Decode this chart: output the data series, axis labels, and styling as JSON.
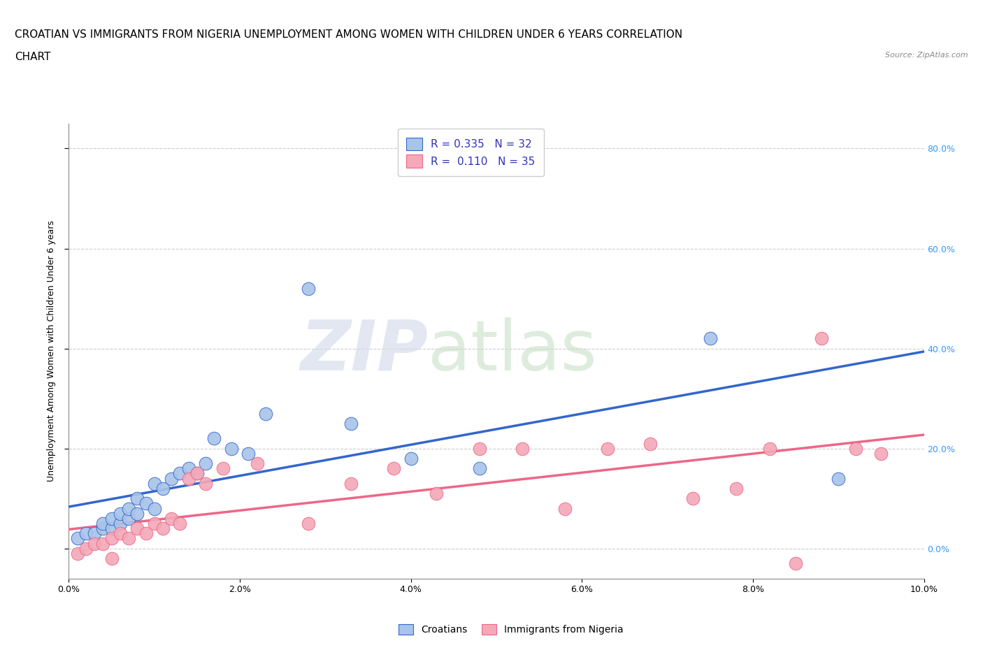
{
  "title_line1": "CROATIAN VS IMMIGRANTS FROM NIGERIA UNEMPLOYMENT AMONG WOMEN WITH CHILDREN UNDER 6 YEARS CORRELATION",
  "title_line2": "CHART",
  "source_text": "Source: ZipAtlas.com",
  "ylabel": "Unemployment Among Women with Children Under 6 years",
  "croatian_color": "#a8c4e8",
  "nigerian_color": "#f4a8b8",
  "trendline_croatian_color": "#3366cc",
  "trendline_nigerian_color": "#ee6688",
  "background_color": "#ffffff",
  "xmin": 0.0,
  "xmax": 0.1,
  "ymin": -0.06,
  "ymax": 0.85,
  "xtick_labels": [
    "0.0%",
    "2.0%",
    "4.0%",
    "6.0%",
    "8.0%",
    "10.0%"
  ],
  "xtick_vals": [
    0.0,
    0.02,
    0.04,
    0.06,
    0.08,
    0.1
  ],
  "ytick_labels": [
    "0.0%",
    "20.0%",
    "40.0%",
    "60.0%",
    "80.0%"
  ],
  "ytick_vals": [
    0.0,
    0.2,
    0.4,
    0.6,
    0.8
  ],
  "croatian_scatter_x": [
    0.001,
    0.002,
    0.003,
    0.004,
    0.004,
    0.005,
    0.005,
    0.006,
    0.006,
    0.007,
    0.007,
    0.008,
    0.008,
    0.009,
    0.01,
    0.01,
    0.011,
    0.012,
    0.013,
    0.014,
    0.015,
    0.016,
    0.017,
    0.019,
    0.021,
    0.023,
    0.028,
    0.033,
    0.04,
    0.048,
    0.075,
    0.09
  ],
  "croatian_scatter_y": [
    0.02,
    0.03,
    0.03,
    0.04,
    0.05,
    0.04,
    0.06,
    0.05,
    0.07,
    0.06,
    0.08,
    0.07,
    0.1,
    0.09,
    0.08,
    0.13,
    0.12,
    0.14,
    0.15,
    0.16,
    0.15,
    0.17,
    0.22,
    0.2,
    0.19,
    0.27,
    0.52,
    0.25,
    0.18,
    0.16,
    0.42,
    0.14
  ],
  "nigerian_scatter_x": [
    0.001,
    0.002,
    0.003,
    0.004,
    0.005,
    0.005,
    0.006,
    0.007,
    0.008,
    0.009,
    0.01,
    0.011,
    0.012,
    0.013,
    0.014,
    0.015,
    0.016,
    0.018,
    0.022,
    0.028,
    0.033,
    0.038,
    0.043,
    0.048,
    0.053,
    0.058,
    0.063,
    0.068,
    0.073,
    0.078,
    0.082,
    0.085,
    0.088,
    0.092,
    0.095
  ],
  "nigerian_scatter_y": [
    -0.01,
    0.0,
    0.01,
    0.01,
    0.02,
    -0.02,
    0.03,
    0.02,
    0.04,
    0.03,
    0.05,
    0.04,
    0.06,
    0.05,
    0.14,
    0.15,
    0.13,
    0.16,
    0.17,
    0.05,
    0.13,
    0.16,
    0.11,
    0.2,
    0.2,
    0.08,
    0.2,
    0.21,
    0.1,
    0.12,
    0.2,
    -0.03,
    0.42,
    0.2,
    0.19
  ],
  "grid_color": "#cccccc",
  "title_fontsize": 11,
  "axis_label_fontsize": 9,
  "tick_fontsize": 9,
  "legend_fontsize": 11,
  "legend_label1": "R = 0.335   N = 32",
  "legend_label2": "R =  0.110   N = 35",
  "bottom_legend_labels": [
    "Croatians",
    "Immigrants from Nigeria"
  ]
}
